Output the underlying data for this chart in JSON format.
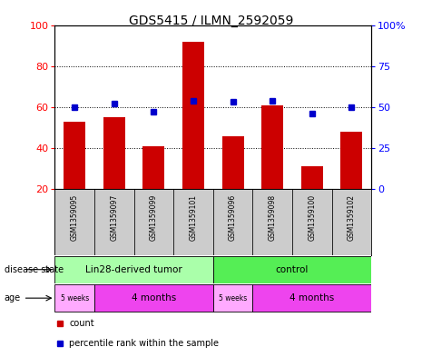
{
  "title": "GDS5415 / ILMN_2592059",
  "samples": [
    "GSM1359095",
    "GSM1359097",
    "GSM1359099",
    "GSM1359101",
    "GSM1359096",
    "GSM1359098",
    "GSM1359100",
    "GSM1359102"
  ],
  "counts": [
    53,
    55,
    41,
    92,
    46,
    61,
    31,
    48
  ],
  "percentile_ranks": [
    50,
    52,
    47,
    54,
    53,
    54,
    46,
    50
  ],
  "ylim_left": [
    20,
    100
  ],
  "ylim_right": [
    0,
    100
  ],
  "yticks_left": [
    20,
    40,
    60,
    80,
    100
  ],
  "yticks_right": [
    0,
    25,
    50,
    75,
    100
  ],
  "yticklabels_right": [
    "0",
    "25",
    "50",
    "75",
    "100%"
  ],
  "bar_color": "#cc0000",
  "dot_color": "#0000cc",
  "disease_state_label": "disease state",
  "disease_state_groups": [
    {
      "label": "Lin28-derived tumor",
      "start": 0,
      "end": 4,
      "color": "#aaffaa"
    },
    {
      "label": "control",
      "start": 4,
      "end": 8,
      "color": "#55ee55"
    }
  ],
  "age_label": "age",
  "age_groups": [
    {
      "label": "5 weeks",
      "start": 0,
      "end": 1,
      "color": "#ffaaff"
    },
    {
      "label": "4 months",
      "start": 1,
      "end": 4,
      "color": "#ee44ee"
    },
    {
      "label": "5 weeks",
      "start": 4,
      "end": 5,
      "color": "#ffaaff"
    },
    {
      "label": "4 months",
      "start": 5,
      "end": 8,
      "color": "#ee44ee"
    }
  ],
  "legend_count_label": "count",
  "legend_pct_label": "percentile rank within the sample",
  "sample_box_color": "#cccccc",
  "dotted_gridlines": [
    40,
    60,
    80,
    100
  ]
}
